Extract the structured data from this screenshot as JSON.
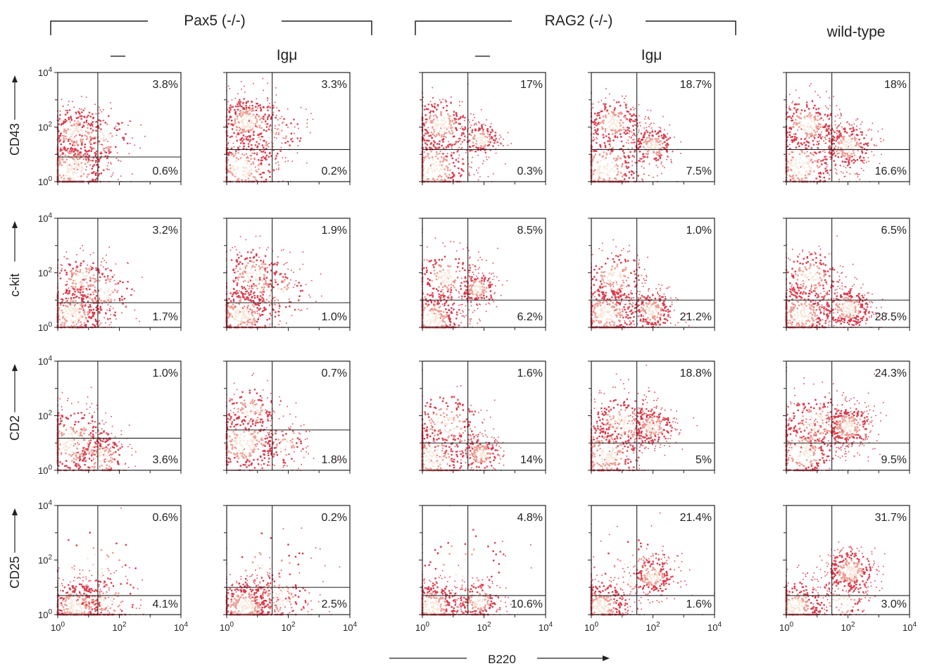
{
  "chart_data": {
    "type": "scatter",
    "x_axis_label": "B220",
    "x_axis_scale": "log",
    "y_axis_scale": "log",
    "axis_range": [
      1,
      10000
    ],
    "groups": [
      {
        "label": "Pax5 (-/-)",
        "columns": [
          0,
          1
        ]
      },
      {
        "label": "RAG2 (-/-)",
        "columns": [
          2,
          3
        ]
      },
      {
        "label": "wild-type",
        "columns": [
          4
        ]
      }
    ],
    "column_labels": [
      "—",
      "Igμ",
      "—",
      "Igμ",
      ""
    ],
    "row_labels": [
      "CD43",
      "c-kit",
      "CD2",
      "CD25"
    ],
    "tick_labels": {
      "x": [
        {
          "base": "10",
          "exp": "0"
        },
        {
          "base": "10",
          "exp": "2"
        },
        {
          "base": "10",
          "exp": "4"
        }
      ],
      "y": [
        {
          "base": "10",
          "exp": "0"
        },
        {
          "base": "10",
          "exp": "2"
        },
        {
          "base": "10",
          "exp": "4"
        }
      ]
    },
    "panels": [
      [
        {
          "upper_right": "3.8%",
          "lower_right": "0.6%",
          "gate_x": 20,
          "gate_y": 8,
          "clusters": [
            {
              "x": 3,
              "y": 3,
              "spread": 0.7,
              "n": 380
            },
            {
              "x": 4,
              "y": 60,
              "spread": 0.55,
              "n": 240
            },
            {
              "x": 25,
              "y": 40,
              "spread": 0.6,
              "n": 120
            }
          ]
        },
        {
          "upper_right": "3.3%",
          "lower_right": "0.2%",
          "gate_x": 30,
          "gate_y": 15,
          "clusters": [
            {
              "x": 3,
              "y": 3,
              "spread": 0.7,
              "n": 300
            },
            {
              "x": 5,
              "y": 150,
              "spread": 0.55,
              "n": 320
            },
            {
              "x": 30,
              "y": 60,
              "spread": 0.6,
              "n": 100
            }
          ]
        },
        {
          "upper_right": "17%",
          "lower_right": "0.3%",
          "gate_x": 30,
          "gate_y": 15,
          "clusters": [
            {
              "x": 2,
              "y": 3,
              "spread": 0.7,
              "n": 320
            },
            {
              "x": 4,
              "y": 120,
              "spread": 0.55,
              "n": 260
            },
            {
              "x": 80,
              "y": 35,
              "spread": 0.35,
              "n": 150
            }
          ]
        },
        {
          "upper_right": "18.7%",
          "lower_right": "7.5%",
          "gate_x": 30,
          "gate_y": 15,
          "clusters": [
            {
              "x": 3,
              "y": 3,
              "spread": 0.7,
              "n": 320
            },
            {
              "x": 5,
              "y": 150,
              "spread": 0.5,
              "n": 240
            },
            {
              "x": 100,
              "y": 20,
              "spread": 0.4,
              "n": 220
            }
          ]
        },
        {
          "upper_right": "18%",
          "lower_right": "16.6%",
          "gate_x": 30,
          "gate_y": 15,
          "clusters": [
            {
              "x": 3,
              "y": 4,
              "spread": 0.7,
              "n": 300
            },
            {
              "x": 5,
              "y": 120,
              "spread": 0.55,
              "n": 260
            },
            {
              "x": 100,
              "y": 20,
              "spread": 0.45,
              "n": 280
            }
          ]
        }
      ],
      [
        {
          "upper_right": "3.2%",
          "lower_right": "1.7%",
          "gate_x": 20,
          "gate_y": 8,
          "clusters": [
            {
              "x": 3,
              "y": 3,
              "spread": 0.6,
              "n": 380
            },
            {
              "x": 6,
              "y": 60,
              "spread": 0.5,
              "n": 150
            },
            {
              "x": 30,
              "y": 20,
              "spread": 0.6,
              "n": 140
            }
          ]
        },
        {
          "upper_right": "1.9%",
          "lower_right": "1.0%",
          "gate_x": 30,
          "gate_y": 8,
          "clusters": [
            {
              "x": 3,
              "y": 3,
              "spread": 0.6,
              "n": 380
            },
            {
              "x": 8,
              "y": 80,
              "spread": 0.6,
              "n": 200
            },
            {
              "x": 40,
              "y": 20,
              "spread": 0.6,
              "n": 120
            }
          ]
        },
        {
          "upper_right": "8.5%",
          "lower_right": "6.2%",
          "gate_x": 30,
          "gate_y": 10,
          "clusters": [
            {
              "x": 2,
              "y": 2,
              "spread": 0.6,
              "n": 380
            },
            {
              "x": 6,
              "y": 70,
              "spread": 0.55,
              "n": 200
            },
            {
              "x": 60,
              "y": 25,
              "spread": 0.35,
              "n": 180
            }
          ]
        },
        {
          "upper_right": "1.0%",
          "lower_right": "21.2%",
          "gate_x": 30,
          "gate_y": 10,
          "clusters": [
            {
              "x": 3,
              "y": 3,
              "spread": 0.6,
              "n": 380
            },
            {
              "x": 6,
              "y": 70,
              "spread": 0.55,
              "n": 200
            },
            {
              "x": 90,
              "y": 4,
              "spread": 0.4,
              "n": 240
            }
          ]
        },
        {
          "upper_right": "6.5%",
          "lower_right": "28.5%",
          "gate_x": 30,
          "gate_y": 10,
          "clusters": [
            {
              "x": 3,
              "y": 3,
              "spread": 0.6,
              "n": 360
            },
            {
              "x": 6,
              "y": 70,
              "spread": 0.55,
              "n": 200
            },
            {
              "x": 100,
              "y": 5,
              "spread": 0.45,
              "n": 300
            }
          ]
        }
      ],
      [
        {
          "upper_right": "1.0%",
          "lower_right": "3.6%",
          "gate_x": 20,
          "gate_y": 15,
          "clusters": [
            {
              "x": 3,
              "y": 10,
              "spread": 0.75,
              "n": 420
            },
            {
              "x": 25,
              "y": 3,
              "spread": 0.5,
              "n": 160
            }
          ]
        },
        {
          "upper_right": "0.7%",
          "lower_right": "1.8%",
          "gate_x": 30,
          "gate_y": 30,
          "clusters": [
            {
              "x": 4,
              "y": 10,
              "spread": 0.7,
              "n": 380
            },
            {
              "x": 6,
              "y": 150,
              "spread": 0.5,
              "n": 120
            },
            {
              "x": 80,
              "y": 8,
              "spread": 0.4,
              "n": 80
            }
          ]
        },
        {
          "upper_right": "1.6%",
          "lower_right": "14%",
          "gate_x": 30,
          "gate_y": 10,
          "clusters": [
            {
              "x": 2,
              "y": 3,
              "spread": 0.7,
              "n": 380
            },
            {
              "x": 6,
              "y": 50,
              "spread": 0.65,
              "n": 180
            },
            {
              "x": 80,
              "y": 4,
              "spread": 0.35,
              "n": 200
            }
          ]
        },
        {
          "upper_right": "18.8%",
          "lower_right": "5%",
          "gate_x": 30,
          "gate_y": 10,
          "clusters": [
            {
              "x": 3,
              "y": 4,
              "spread": 0.7,
              "n": 360
            },
            {
              "x": 10,
              "y": 50,
              "spread": 0.65,
              "n": 220
            },
            {
              "x": 100,
              "y": 40,
              "spread": 0.4,
              "n": 240
            }
          ]
        },
        {
          "upper_right": "24.3%",
          "lower_right": "9.5%",
          "gate_x": 30,
          "gate_y": 10,
          "clusters": [
            {
              "x": 3,
              "y": 5,
              "spread": 0.7,
              "n": 340
            },
            {
              "x": 10,
              "y": 50,
              "spread": 0.65,
              "n": 220
            },
            {
              "x": 100,
              "y": 40,
              "spread": 0.45,
              "n": 300
            }
          ]
        }
      ],
      [
        {
          "upper_right": "0.6%",
          "lower_right": "4.1%",
          "gate_x": 20,
          "gate_y": 5,
          "clusters": [
            {
              "x": 4,
              "y": 2,
              "spread": 0.55,
              "n": 420
            },
            {
              "x": 40,
              "y": 3,
              "spread": 0.6,
              "n": 140
            },
            {
              "x": 20,
              "y": 60,
              "spread": 0.9,
              "n": 40
            }
          ]
        },
        {
          "upper_right": "0.2%",
          "lower_right": "2.5%",
          "gate_x": 30,
          "gate_y": 10,
          "clusters": [
            {
              "x": 4,
              "y": 2,
              "spread": 0.55,
              "n": 420
            },
            {
              "x": 50,
              "y": 4,
              "spread": 0.6,
              "n": 150
            },
            {
              "x": 20,
              "y": 60,
              "spread": 0.9,
              "n": 50
            }
          ]
        },
        {
          "upper_right": "4.8%",
          "lower_right": "10.6%",
          "gate_x": 30,
          "gate_y": 5,
          "clusters": [
            {
              "x": 2,
              "y": 2,
              "spread": 0.55,
              "n": 380
            },
            {
              "x": 70,
              "y": 3,
              "spread": 0.4,
              "n": 200
            },
            {
              "x": 20,
              "y": 60,
              "spread": 0.9,
              "n": 60
            }
          ]
        },
        {
          "upper_right": "21.4%",
          "lower_right": "1.6%",
          "gate_x": 30,
          "gate_y": 5,
          "clusters": [
            {
              "x": 2,
              "y": 2,
              "spread": 0.55,
              "n": 380
            },
            {
              "x": 100,
              "y": 25,
              "spread": 0.4,
              "n": 240
            },
            {
              "x": 20,
              "y": 40,
              "spread": 0.9,
              "n": 60
            }
          ]
        },
        {
          "upper_right": "31.7%",
          "lower_right": "3.0%",
          "gate_x": 30,
          "gate_y": 5,
          "clusters": [
            {
              "x": 2,
              "y": 2,
              "spread": 0.55,
              "n": 340
            },
            {
              "x": 120,
              "y": 40,
              "spread": 0.45,
              "n": 320
            },
            {
              "x": 60,
              "y": 3,
              "spread": 0.5,
              "n": 80
            }
          ]
        }
      ]
    ]
  }
}
